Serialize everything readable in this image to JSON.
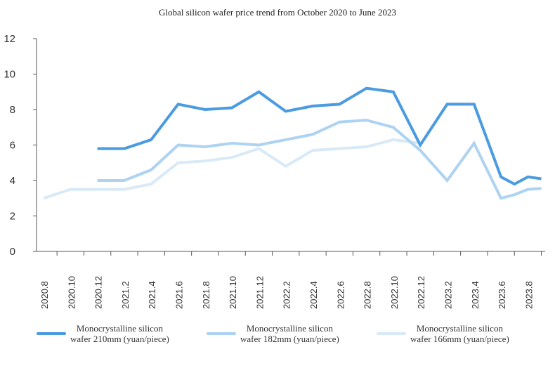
{
  "chart_data": {
    "type": "line",
    "title": "Global silicon wafer price trend from October 2020 to June 2023",
    "xlabel": "",
    "ylabel": "",
    "ylim": [
      0,
      12
    ],
    "yticks": [
      0,
      2,
      4,
      6,
      8,
      10,
      12
    ],
    "categories": [
      "2020.8",
      "2020.10",
      "2020.12",
      "2021.2",
      "2021.4",
      "2021.6",
      "2021.8",
      "2021.10",
      "2021.12",
      "2022.2",
      "2022.4",
      "2022.6",
      "2022.8",
      "2022.10",
      "2022.12",
      "2023.2",
      "2023.4",
      "2023.6",
      "2023.8"
    ],
    "series": [
      {
        "name": "Monocrystalline silicon wafer 210mm (yuan/piece)",
        "label_lines": [
          "Monocrystalline silicon",
          "wafer 210mm (yuan/piece)"
        ],
        "color": "#4a9be0",
        "points": [
          [
            2,
            5.8
          ],
          [
            3,
            5.8
          ],
          [
            4,
            6.3
          ],
          [
            5,
            8.3
          ],
          [
            6,
            8.0
          ],
          [
            7,
            8.1
          ],
          [
            8,
            9.0
          ],
          [
            9,
            7.9
          ],
          [
            10,
            8.2
          ],
          [
            11,
            8.3
          ],
          [
            12,
            9.2
          ],
          [
            13,
            9.0
          ],
          [
            14,
            6.0
          ],
          [
            15,
            8.3
          ],
          [
            16,
            8.3
          ],
          [
            17,
            4.2
          ],
          [
            17.5,
            3.8
          ],
          [
            18,
            4.2
          ],
          [
            18.5,
            4.1
          ]
        ]
      },
      {
        "name": "Monocrystalline silicon wafer 182mm (yuan/piece)",
        "label_lines": [
          "Monocrystalline silicon",
          "wafer 182mm (yuan/piece)"
        ],
        "color": "#aed3f2",
        "points": [
          [
            2,
            4.0
          ],
          [
            3,
            4.0
          ],
          [
            4,
            4.6
          ],
          [
            5,
            6.0
          ],
          [
            6,
            5.9
          ],
          [
            7,
            6.1
          ],
          [
            8,
            6.0
          ],
          [
            9,
            6.3
          ],
          [
            10,
            6.6
          ],
          [
            11,
            7.3
          ],
          [
            12,
            7.4
          ],
          [
            13,
            7.0
          ],
          [
            14,
            5.7
          ],
          [
            15,
            4.0
          ],
          [
            16,
            6.1
          ],
          [
            17,
            3.0
          ],
          [
            17.5,
            3.2
          ],
          [
            18,
            3.5
          ],
          [
            18.5,
            3.55
          ]
        ]
      },
      {
        "name": "Monocrystalline silicon wafer 166mm (yuan/piece)",
        "label_lines": [
          "Monocrystalline silicon",
          "wafer 166mm (yuan/piece)"
        ],
        "color": "#d8eaf8",
        "points": [
          [
            0,
            3.0
          ],
          [
            1,
            3.5
          ],
          [
            2,
            3.5
          ],
          [
            3,
            3.5
          ],
          [
            4,
            3.8
          ],
          [
            5,
            5.0
          ],
          [
            6,
            5.1
          ],
          [
            7,
            5.3
          ],
          [
            8,
            5.8
          ],
          [
            9,
            4.8
          ],
          [
            10,
            5.7
          ],
          [
            11,
            5.8
          ],
          [
            12,
            5.9
          ],
          [
            13,
            6.3
          ],
          [
            14,
            6.1
          ]
        ]
      }
    ]
  }
}
